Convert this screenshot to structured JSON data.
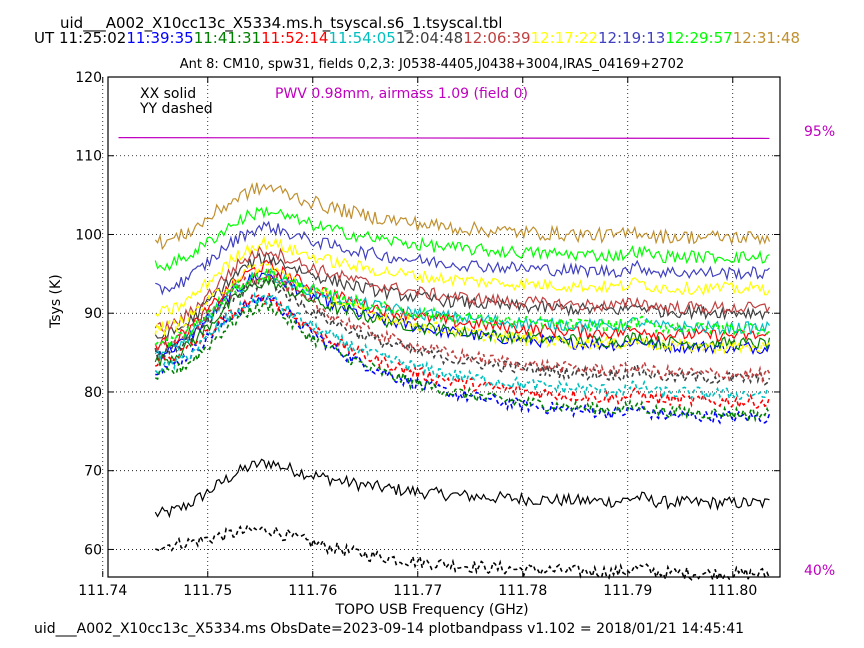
{
  "header": {
    "file_title": "uid___A002_X10cc13c_X5334.ms.h_tsyscal.s6_1.tsyscal.tbl",
    "ut_label": "UT",
    "ut_times": [
      {
        "text": "11:25:02",
        "color": "#000000"
      },
      {
        "text": "11:39:35",
        "color": "#0000ff"
      },
      {
        "text": "11:41:31",
        "color": "#008000"
      },
      {
        "text": "11:52:14",
        "color": "#ff0000"
      },
      {
        "text": "11:54:05",
        "color": "#00bfbf"
      },
      {
        "text": "12:04:48",
        "color": "#404040"
      },
      {
        "text": "12:06:39",
        "color": "#c04040"
      },
      {
        "text": "12:17:22",
        "color": "#ffff00"
      },
      {
        "text": "12:19:13",
        "color": "#4040c0"
      },
      {
        "text": "12:29:57",
        "color": "#00ff00"
      },
      {
        "text": "12:31:48",
        "color": "#c09030"
      }
    ],
    "subtitle": "Ant 8: CM10,  spw31,  fields 0,2,3: J0538-4405,J0438+3004,IRAS_04169+2702"
  },
  "footer": "uid___A002_X10cc13c_X5334.ms  ObsDate=2023-09-14   plotbandpass v1.102 = 2018/01/21 14:45:41",
  "chart_data": {
    "type": "line",
    "xlabel": "TOPO USB Frequency (GHz)",
    "ylabel": "Tsys (K)",
    "xlim": [
      111.7405,
      111.8045
    ],
    "ylim": [
      56.5,
      120
    ],
    "xticks": [
      "111.74",
      "111.75",
      "111.76",
      "111.77",
      "111.78",
      "111.79",
      "111.80"
    ],
    "xtick_values": [
      111.74,
      111.75,
      111.76,
      111.77,
      111.78,
      111.79,
      111.8
    ],
    "yticks": [
      60,
      70,
      80,
      90,
      100,
      110,
      120
    ],
    "grid": true,
    "legend_text": [
      "XX solid",
      "YY dashed"
    ],
    "pwv_annotation": {
      "text": "PWV 0.98mm, airmass 1.09 (field 0)",
      "color": "#c000c0"
    },
    "pwv_line": {
      "x": [
        111.7415,
        111.8035
      ],
      "y": [
        112.3,
        112.2
      ],
      "color": "#c000c0"
    },
    "percent_labels": {
      "high": "95%",
      "low": "40%",
      "color": "#c000c0"
    },
    "x_start": 111.745,
    "x_end": 111.8035,
    "series": [
      {
        "color": "#000000",
        "style": "solid",
        "start": 64.5,
        "peak": 71.0,
        "end": 65.8,
        "noise": 0.8
      },
      {
        "color": "#000000",
        "style": "dashed",
        "start": 60.5,
        "peak": 62.5,
        "end": 56.8,
        "noise": 0.8
      },
      {
        "color": "#0000ff",
        "style": "solid",
        "start": 85,
        "peak": 95,
        "end": 85.5,
        "noise": 0.8
      },
      {
        "color": "#0000ff",
        "style": "dashed",
        "start": 83,
        "peak": 92,
        "end": 76.5,
        "noise": 0.8
      },
      {
        "color": "#008000",
        "style": "solid",
        "start": 84,
        "peak": 94,
        "end": 86,
        "noise": 0.8
      },
      {
        "color": "#008000",
        "style": "dashed",
        "start": 82,
        "peak": 91,
        "end": 77,
        "noise": 0.8
      },
      {
        "color": "#ff0000",
        "style": "solid",
        "start": 86,
        "peak": 96,
        "end": 87,
        "noise": 0.8
      },
      {
        "color": "#ff0000",
        "style": "dashed",
        "start": 84,
        "peak": 92,
        "end": 78.5,
        "noise": 0.8
      },
      {
        "color": "#00bfbf",
        "style": "solid",
        "start": 85,
        "peak": 95,
        "end": 88,
        "noise": 0.8
      },
      {
        "color": "#00bfbf",
        "style": "dashed",
        "start": 83,
        "peak": 92,
        "end": 79.5,
        "noise": 0.8
      },
      {
        "color": "#404040",
        "style": "solid",
        "start": 87,
        "peak": 97,
        "end": 90,
        "noise": 0.8
      },
      {
        "color": "#404040",
        "style": "dashed",
        "start": 85,
        "peak": 94,
        "end": 81.5,
        "noise": 0.8
      },
      {
        "color": "#c04040",
        "style": "solid",
        "start": 88,
        "peak": 98,
        "end": 90.5,
        "noise": 0.8
      },
      {
        "color": "#c04040",
        "style": "dashed",
        "start": 86,
        "peak": 95,
        "end": 82,
        "noise": 0.8
      },
      {
        "color": "#ffff00",
        "style": "solid",
        "start": 90,
        "peak": 99,
        "end": 93,
        "noise": 0.8
      },
      {
        "color": "#ffff00",
        "style": "dashed",
        "start": 88,
        "peak": 96,
        "end": 85.5,
        "noise": 0.8
      },
      {
        "color": "#4040c0",
        "style": "solid",
        "start": 93,
        "peak": 101,
        "end": 95,
        "noise": 0.8
      },
      {
        "color": "#00ff00",
        "style": "solid",
        "start": 96,
        "peak": 103,
        "end": 97,
        "noise": 0.8
      },
      {
        "color": "#00ff00",
        "style": "dashed",
        "start": 86,
        "peak": 95,
        "end": 88,
        "noise": 0.8
      },
      {
        "color": "#c09030",
        "style": "solid",
        "start": 99,
        "peak": 106,
        "end": 99.5,
        "noise": 0.9
      }
    ]
  }
}
